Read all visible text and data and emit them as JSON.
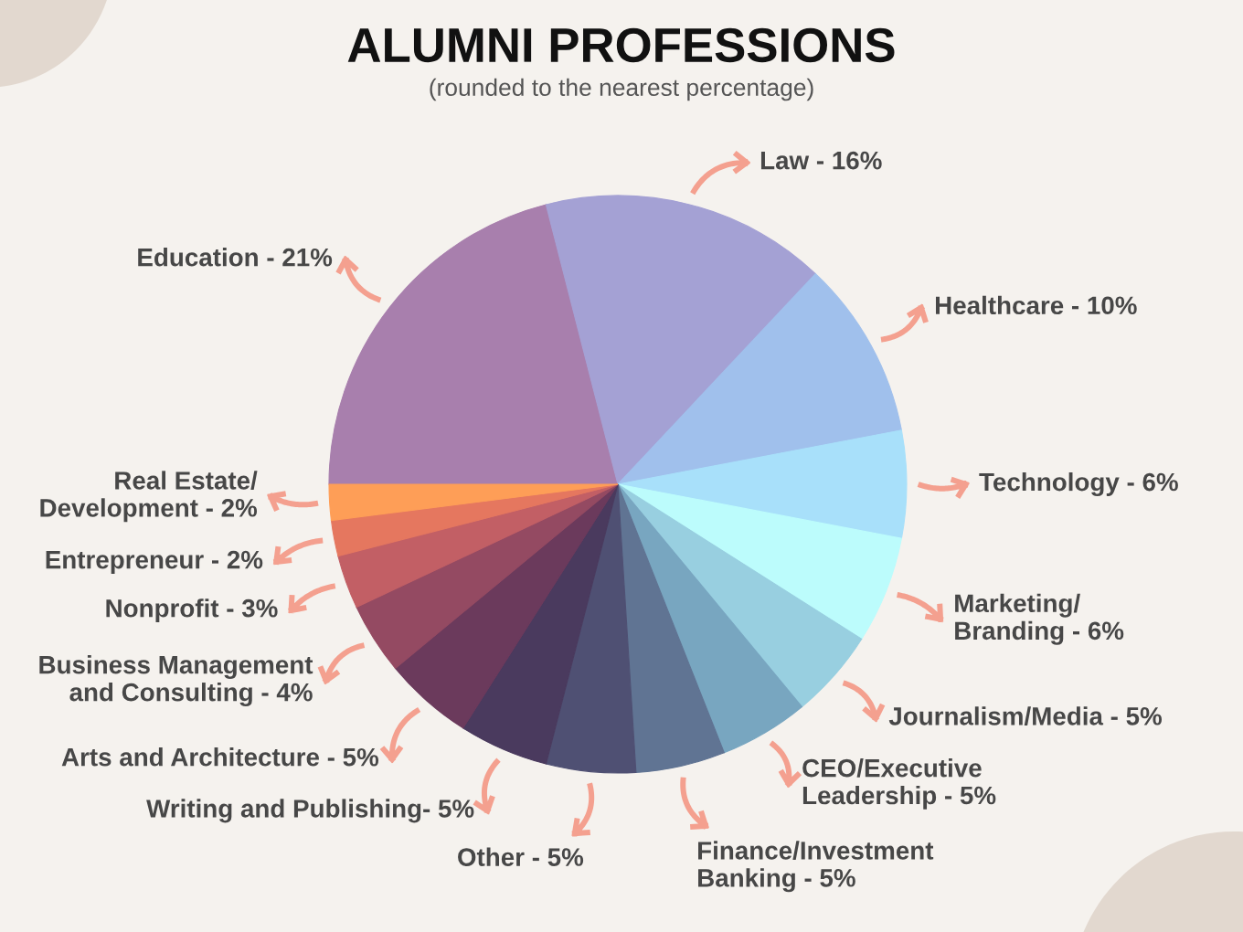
{
  "chart_data": {
    "type": "pie",
    "title": "ALUMNI PROFESSIONS",
    "subtitle": "(rounded to the nearest percentage)",
    "categories": [
      "Education - 21%",
      "Law - 16%",
      "Healthcare - 10%",
      "Technology - 6%",
      "Marketing/\nBranding - 6%",
      "Journalism/Media - 5%",
      "CEO/Executive\nLeadership - 5%",
      "Finance/Investment\nBanking - 5%",
      "Other - 5%",
      "Writing and Publishing- 5%",
      "Arts and Architecture - 5%",
      "Business Management\nand Consulting - 4%",
      "Nonprofit - 3%",
      "Entrepreneur - 2%",
      "Real Estate/\nDevelopment - 2%"
    ],
    "values": [
      21,
      16,
      10,
      6,
      6,
      5,
      5,
      5,
      5,
      5,
      5,
      4,
      3,
      2,
      2
    ],
    "colors": [
      "#a87fad",
      "#a4a1d4",
      "#a0c0ec",
      "#a8e0fa",
      "#bcfcfc",
      "#98cfe0",
      "#78a6c0",
      "#607493",
      "#4f5073",
      "#4a3a5e",
      "#6b3a5c",
      "#944a62",
      "#c25f65",
      "#e5775f",
      "#fe9e57"
    ]
  }
}
